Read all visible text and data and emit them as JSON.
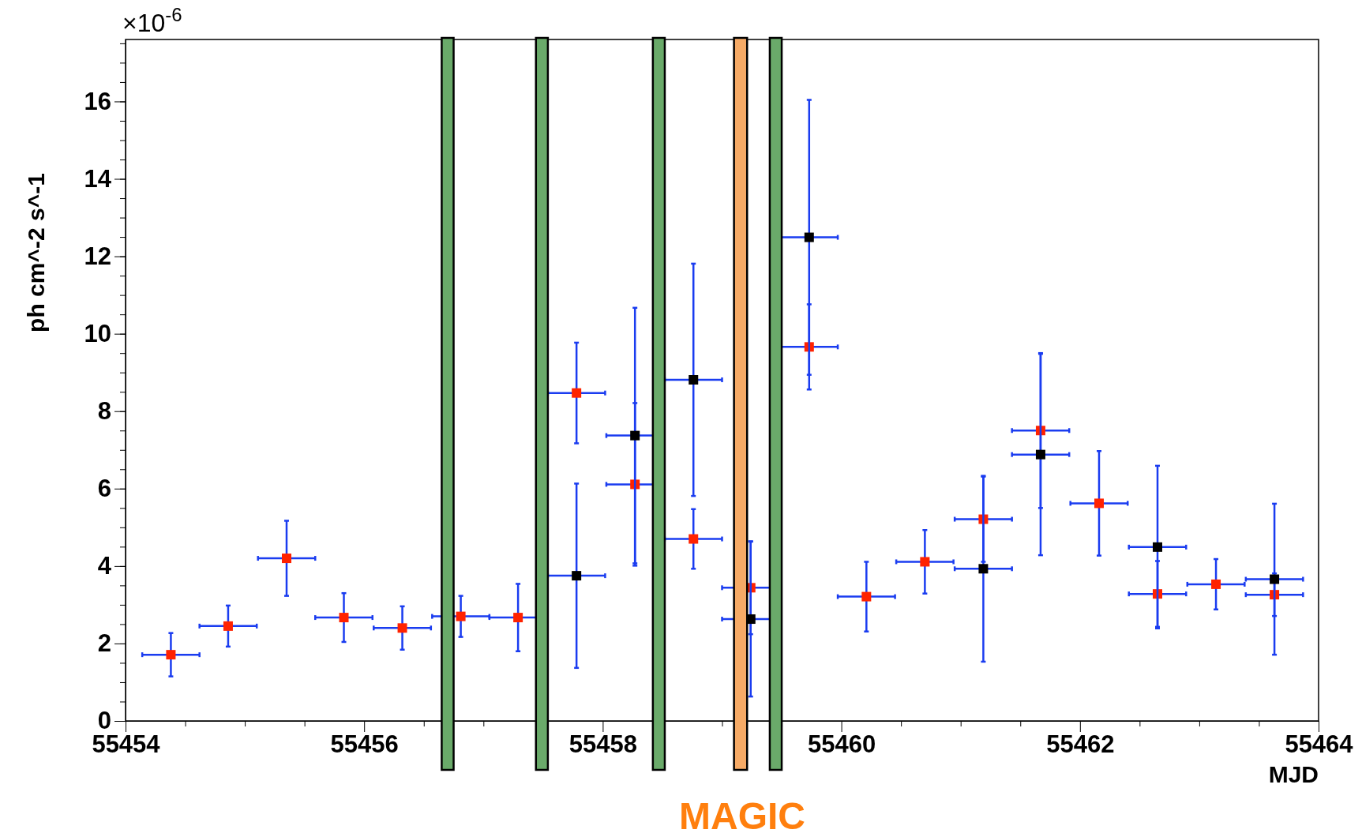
{
  "chart_data": {
    "type": "scatter",
    "xlabel": "MJD",
    "ylabel": "ph cm^-2 s^-1",
    "xlim": [
      55454,
      55464
    ],
    "xticks": [
      55454,
      55456,
      55458,
      55460,
      55462,
      55464
    ],
    "ylim": [
      0,
      17.6
    ],
    "yticks": [
      0,
      2,
      4,
      6,
      8,
      10,
      12,
      14,
      16
    ],
    "marker": "square",
    "grid": false,
    "annotations": [
      "×10$^{-6}$",
      "MAGIC"
    ],
    "bands": [
      {
        "axis": "x",
        "from": 55456.65,
        "to": 55456.75,
        "color": "#6aaa6a"
      },
      {
        "axis": "x",
        "from": 55457.44,
        "to": 55457.54,
        "color": "#6aaa6a"
      },
      {
        "axis": "x",
        "from": 55458.42,
        "to": 55458.52,
        "color": "#6aaa6a"
      },
      {
        "axis": "x",
        "from": 55459.1,
        "to": 55459.21,
        "color": "#f6aa66"
      },
      {
        "axis": "x",
        "from": 55459.4,
        "to": 55459.5,
        "color": "#6aaa6a"
      }
    ],
    "series": [
      {
        "color": "#ff2200",
        "x": [
          55454.38,
          55454.86,
          55455.35,
          55455.83,
          55456.32,
          55456.81,
          55457.29,
          55457.78,
          55458.27,
          55458.76,
          55459.24,
          55459.73,
          55460.21,
          55460.7,
          55461.19,
          55461.67,
          55462.16,
          55462.65,
          55463.14,
          55463.63
        ],
        "values": [
          1.71,
          2.45,
          4.2,
          2.67,
          2.4,
          2.7,
          2.67,
          8.47,
          6.11,
          4.7,
          3.44,
          9.66,
          3.21,
          4.11,
          5.21,
          7.5,
          5.62,
          3.28,
          3.53,
          3.26
        ],
        "errors": [
          0.56,
          0.53,
          0.97,
          0.63,
          0.56,
          0.53,
          0.87,
          1.3,
          2.1,
          0.77,
          1.2,
          1.1,
          0.9,
          0.82,
          1.1,
          2.0,
          1.35,
          0.85,
          0.65,
          0.55
        ],
        "xerrors": [
          0.24,
          0.24,
          0.24,
          0.24,
          0.24,
          0.24,
          0.24,
          0.24,
          0.24,
          0.24,
          0.24,
          0.24,
          0.24,
          0.24,
          0.24,
          0.24,
          0.24,
          0.24,
          0.24,
          0.24
        ]
      },
      {
        "color": "#000000",
        "x": [
          55457.78,
          55458.27,
          55458.76,
          55459.24,
          55459.73,
          55461.19,
          55461.67,
          55462.65,
          55463.63
        ],
        "values": [
          3.75,
          7.37,
          8.81,
          2.63,
          12.49,
          3.93,
          6.88,
          4.49,
          3.66
        ],
        "errors": [
          2.38,
          3.3,
          3.0,
          2.0,
          3.55,
          2.4,
          2.6,
          2.1,
          1.95
        ],
        "xerrors": [
          0.24,
          0.24,
          0.24,
          0.24,
          0.24,
          0.24,
          0.24,
          0.24,
          0.24
        ]
      }
    ]
  }
}
